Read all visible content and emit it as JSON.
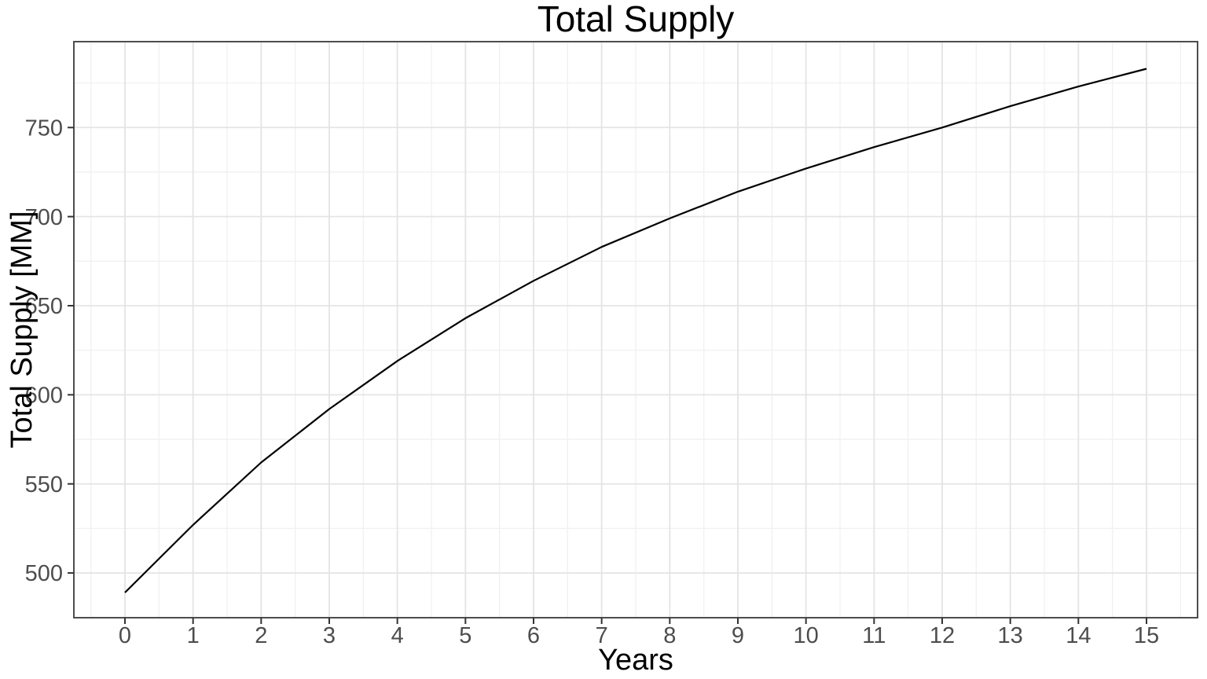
{
  "chart_data": {
    "type": "line",
    "title": "Total Supply",
    "xlabel": "Years",
    "ylabel": "Total Supply [MM]",
    "x": [
      0,
      1,
      2,
      3,
      4,
      5,
      6,
      7,
      8,
      9,
      10,
      11,
      12,
      13,
      14,
      15
    ],
    "series": [
      {
        "name": "Total Supply",
        "values": [
          489,
          527,
          562,
          592,
          619,
          643,
          664,
          683,
          699,
          714,
          727,
          739,
          750,
          762,
          773,
          783
        ]
      }
    ],
    "xlim": [
      -0.75,
      15.75
    ],
    "ylim": [
      474.9,
      798.2
    ],
    "x_ticks": [
      0,
      1,
      2,
      3,
      4,
      5,
      6,
      7,
      8,
      9,
      10,
      11,
      12,
      13,
      14,
      15
    ],
    "y_ticks": [
      500,
      550,
      600,
      650,
      700,
      750
    ],
    "grid": "major and minor, light gray on white",
    "legend": "none",
    "colors": {
      "line": "#000000",
      "grid_major": "#e4e4e4",
      "grid_minor": "#f1f1f1",
      "panel_border": "#4d4d4d",
      "tick_mark": "#333333",
      "tick_label": "#4d4d4d",
      "axis_title": "#000000",
      "title": "#000000",
      "background": "#ffffff"
    }
  }
}
